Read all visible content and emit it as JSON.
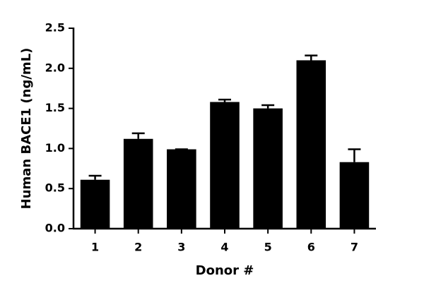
{
  "chart_data": {
    "type": "bar",
    "x_label": "Donor #",
    "y_label": "Human BACE1 (ng/mL)",
    "categories": [
      "1",
      "2",
      "3",
      "4",
      "5",
      "6",
      "7"
    ],
    "values": [
      0.61,
      1.12,
      0.99,
      1.58,
      1.5,
      2.1,
      0.83
    ],
    "errors": [
      0.05,
      0.07,
      0.0,
      0.03,
      0.04,
      0.06,
      0.16
    ],
    "color": "#000000",
    "ylim": [
      0,
      2.5
    ],
    "yticks": [
      {
        "value": 0,
        "label": "0.0"
      },
      0.5,
      {
        "value": 1,
        "label": "1.0"
      },
      1.5,
      {
        "value": 2,
        "label": "2.0"
      },
      2.5
    ],
    "grid": false
  }
}
